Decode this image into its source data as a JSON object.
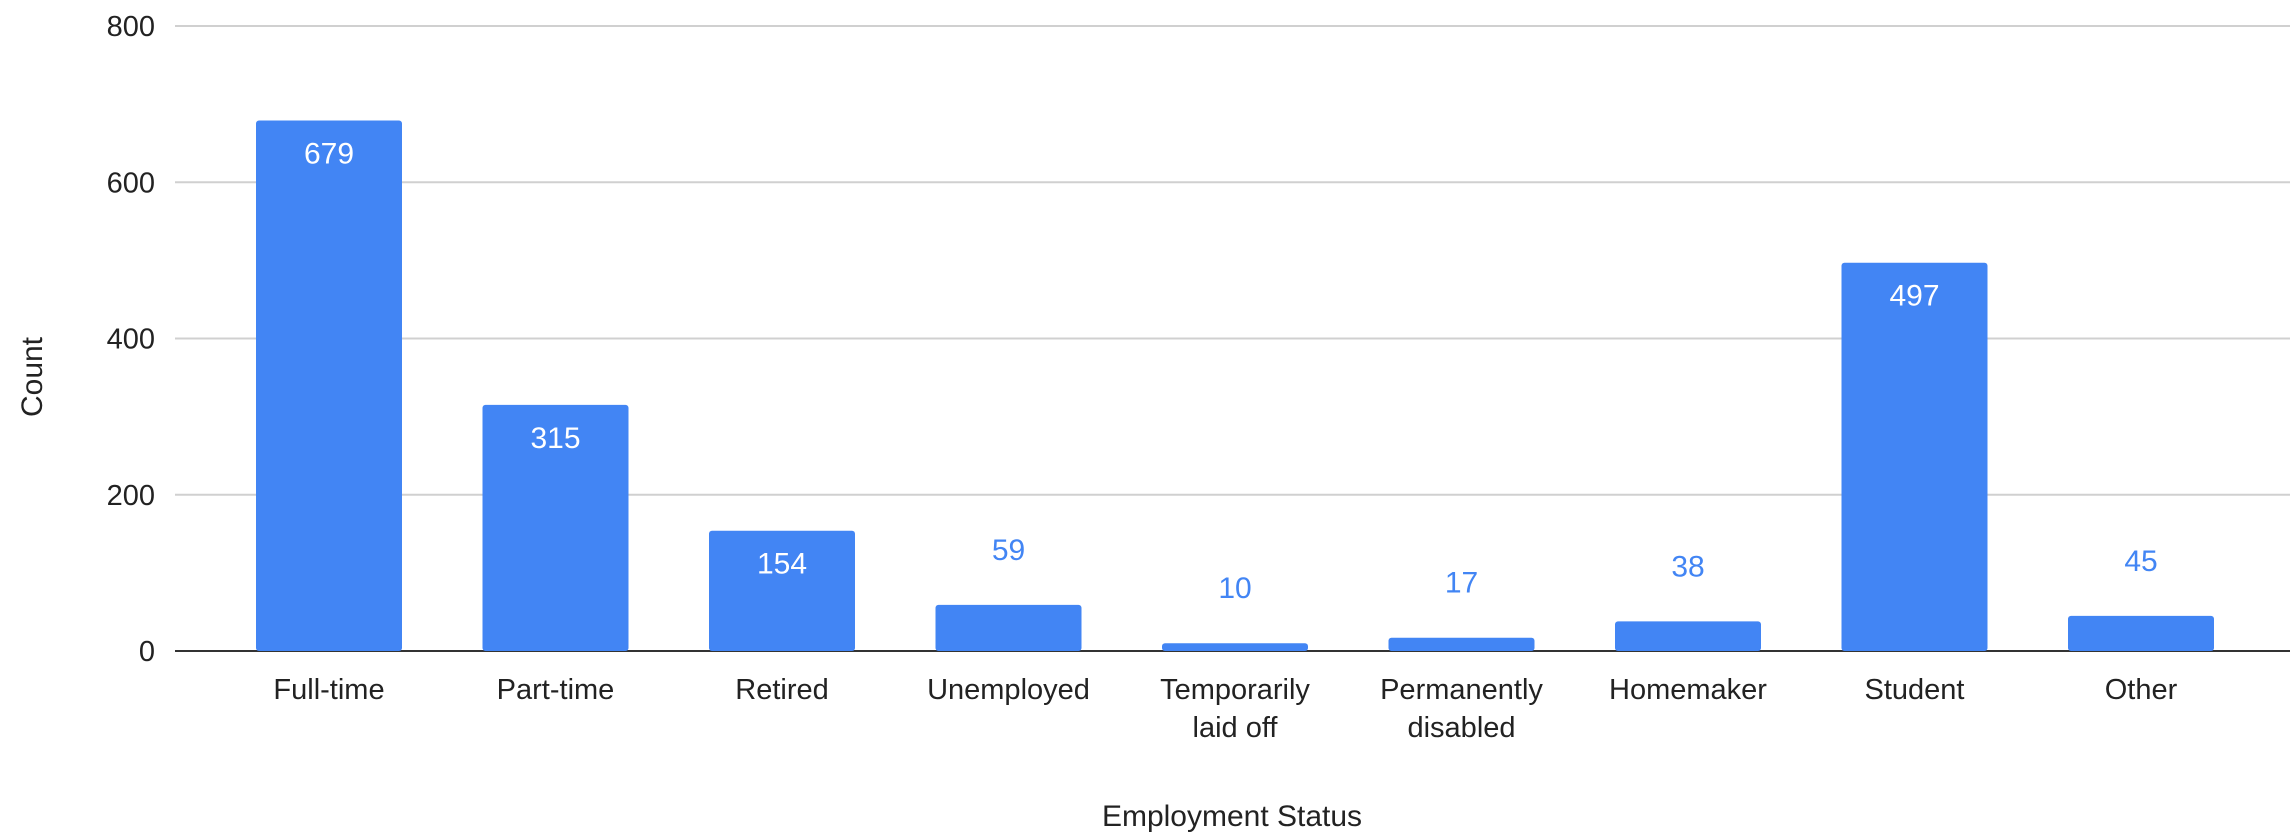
{
  "chart_data": {
    "type": "bar",
    "categories": [
      "Full-time",
      "Part-time",
      "Retired",
      "Unemployed",
      "Temporarily laid off",
      "Permanently disabled",
      "Homemaker",
      "Student",
      "Other"
    ],
    "category_label_lines": [
      [
        "Full-time"
      ],
      [
        "Part-time"
      ],
      [
        "Retired"
      ],
      [
        "Unemployed"
      ],
      [
        "Temporarily",
        "laid off"
      ],
      [
        "Permanently",
        "disabled"
      ],
      [
        "Homemaker"
      ],
      [
        "Student"
      ],
      [
        "Other"
      ]
    ],
    "values": [
      679,
      315,
      154,
      59,
      10,
      17,
      38,
      497,
      45
    ],
    "xlabel": "Employment Status",
    "ylabel": "Count",
    "ylim": [
      0,
      800
    ],
    "yticks": [
      0,
      200,
      400,
      600,
      800
    ],
    "grid": true,
    "legend": "none",
    "bar_color": "#4285f4",
    "label_inside_color": "#ffffff",
    "label_outside_color": "#4285f4"
  }
}
